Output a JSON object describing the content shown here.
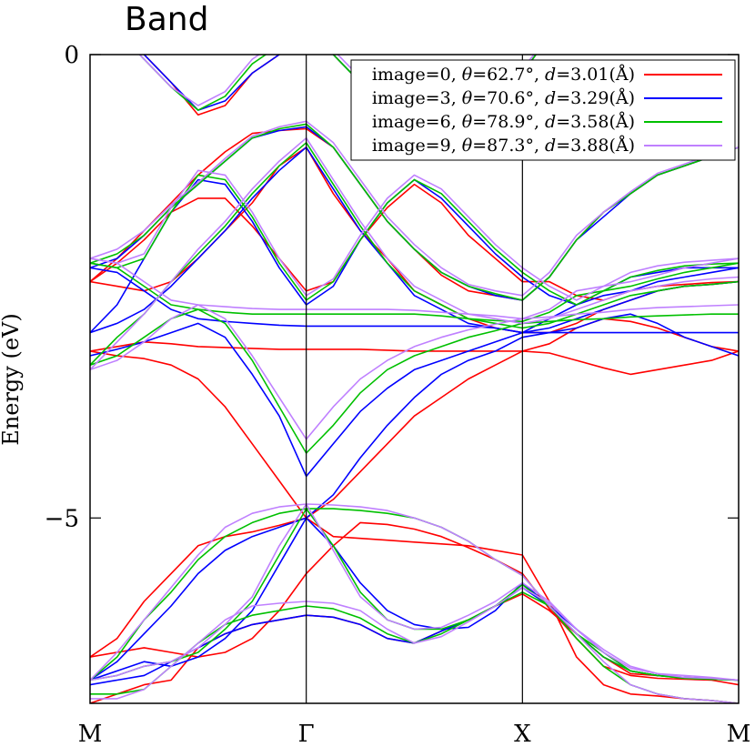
{
  "chart_data": {
    "type": "line",
    "title": "Band",
    "ylabel": "Energy (eV)",
    "xlabel": "",
    "k_path": [
      "M",
      "Γ",
      "X",
      "M"
    ],
    "k_positions": [
      0,
      1,
      2,
      3
    ],
    "ylim": [
      -7,
      0
    ],
    "y_ticks": [
      0,
      -5
    ],
    "y_tick_labels": [
      "0",
      "−5"
    ],
    "grid": false,
    "legend_position": "top-right",
    "k_grid": [
      0,
      0.125,
      0.25,
      0.375,
      0.5,
      0.625,
      0.75,
      0.875,
      1,
      1.125,
      1.25,
      1.375,
      1.5,
      1.625,
      1.75,
      1.875,
      2,
      2.125,
      2.25,
      2.375,
      2.5,
      2.625,
      2.75,
      2.875,
      3
    ],
    "series": [
      {
        "name": "image=0, θ=62.7°, d=3.01(Å)",
        "legend": {
          "prefix": "image=0, ",
          "theta": "θ",
          "theta_val": "=62.7°, ",
          "d": "d",
          "d_val": "=3.01(Å)"
        },
        "color": "#ff0000",
        "bands": [
          [
            -7.0,
            -6.9,
            -6.8,
            -6.75,
            -6.4,
            -6.25,
            -6.15,
            -6.1,
            -6.05,
            -6.07,
            -6.15,
            -6.3,
            -6.35,
            -6.22,
            -6.1,
            -5.95,
            -5.82,
            -6.0,
            -6.25,
            -6.5,
            -6.68,
            -6.7,
            -6.72,
            -6.73,
            -6.75
          ],
          [
            -6.5,
            -6.45,
            -6.4,
            -6.45,
            -6.5,
            -6.45,
            -6.3,
            -6.0,
            -5.6,
            -5.3,
            -5.05,
            -5.07,
            -5.12,
            -5.2,
            -5.32,
            -5.45,
            -5.6,
            -5.98,
            -6.3,
            -6.6,
            -6.7,
            -6.73,
            -6.74,
            -6.75,
            -6.8
          ],
          [
            -6.5,
            -6.3,
            -5.9,
            -5.6,
            -5.3,
            -5.2,
            -5.15,
            -5.08,
            -5.0,
            -4.8,
            -4.5,
            -4.2,
            -3.9,
            -3.7,
            -3.5,
            -3.35,
            -3.2,
            -3.22,
            -3.3,
            -3.38,
            -3.45,
            -3.4,
            -3.35,
            -3.3,
            -3.2
          ],
          [
            -3.2,
            -3.25,
            -3.28,
            -3.35,
            -3.5,
            -3.8,
            -4.2,
            -4.6,
            -5.0,
            -5.2,
            -5.22,
            -5.24,
            -5.26,
            -5.28,
            -5.3,
            -5.35,
            -5.4,
            -5.9,
            -6.5,
            -6.8,
            -6.9,
            -6.92,
            -6.95,
            -6.97,
            -7.0
          ],
          [
            -3.2,
            -3.15,
            -3.1,
            -3.12,
            -3.15,
            -3.16,
            -3.17,
            -3.18,
            -3.18,
            -3.18,
            -3.18,
            -3.19,
            -3.2,
            -3.2,
            -3.2,
            -3.2,
            -3.2,
            -3.12,
            -2.95,
            -2.85,
            -2.88,
            -2.95,
            -3.05,
            -3.15,
            -3.2
          ],
          [
            -2.45,
            -2.5,
            -2.55,
            -2.45,
            -2.2,
            -1.9,
            -1.6,
            -1.2,
            -1.0,
            -1.5,
            -1.9,
            -2.2,
            -2.55,
            -2.7,
            -2.85,
            -2.95,
            -3.0,
            -3.0,
            -2.9,
            -2.75,
            -2.65,
            -2.55,
            -2.5,
            -2.48,
            -2.45
          ],
          [
            -2.45,
            -2.2,
            -1.9,
            -1.6,
            -1.3,
            -1.05,
            -0.85,
            -0.82,
            -0.8,
            -1.0,
            -1.4,
            -1.8,
            -2.1,
            -2.38,
            -2.55,
            -2.6,
            -2.65,
            -2.4,
            -2.0,
            -1.7,
            -1.5,
            -1.3,
            -1.2,
            -1.1,
            -1.0
          ],
          [
            -2.45,
            -2.25,
            -2.0,
            -1.7,
            -1.55,
            -1.55,
            -1.85,
            -2.2,
            -2.55,
            -2.45,
            -2.0,
            -1.65,
            -1.4,
            -1.6,
            -1.95,
            -2.2,
            -2.45,
            -2.45,
            -2.6,
            -2.65,
            -2.55,
            -2.5,
            -2.48,
            -2.46,
            -2.45
          ],
          [
            0.5,
            0.3,
            0.0,
            -0.3,
            -0.65,
            -0.55,
            -0.2,
            0.0,
            0.2,
            0.0,
            -0.3,
            -0.6,
            -0.95,
            -1.0,
            -0.8,
            -0.5,
            -0.2,
            0.2,
            0.5,
            0.6,
            0.7,
            0.8,
            0.9,
            0.95,
            1.0
          ]
        ]
      },
      {
        "name": "image=3, θ=70.6°, d=3.29(Å)",
        "legend": {
          "prefix": "image=3, ",
          "theta": "θ",
          "theta_val": "=70.6°, ",
          "d": "d",
          "d_val": "=3.29(Å)"
        },
        "color": "#0000ff",
        "bands": [
          [
            -6.8,
            -6.75,
            -6.7,
            -6.55,
            -6.4,
            -6.25,
            -6.15,
            -6.1,
            -6.05,
            -6.07,
            -6.15,
            -6.3,
            -6.35,
            -6.22,
            -6.1,
            -5.95,
            -5.75,
            -5.95,
            -6.2,
            -6.45,
            -6.65,
            -6.7,
            -6.72,
            -6.73,
            -6.75
          ],
          [
            -6.75,
            -6.65,
            -6.55,
            -6.6,
            -6.5,
            -6.3,
            -6.0,
            -5.5,
            -5.0,
            -5.3,
            -5.7,
            -6.0,
            -6.15,
            -6.2,
            -6.18,
            -6.0,
            -5.7,
            -5.95,
            -6.25,
            -6.5,
            -6.65,
            -6.7,
            -6.72,
            -6.74,
            -6.75
          ],
          [
            -6.75,
            -6.55,
            -6.25,
            -5.95,
            -5.6,
            -5.35,
            -5.2,
            -5.1,
            -5.0,
            -4.75,
            -4.35,
            -4.0,
            -3.7,
            -3.45,
            -3.3,
            -3.2,
            -3.05,
            -3.0,
            -2.95,
            -2.85,
            -2.8,
            -2.9,
            -3.05,
            -3.15,
            -3.25
          ],
          [
            -3.25,
            -3.18,
            -3.1,
            -3.0,
            -2.9,
            -3.05,
            -3.45,
            -3.9,
            -4.55,
            -4.2,
            -3.85,
            -3.6,
            -3.4,
            -3.3,
            -3.2,
            -3.1,
            -3.0,
            -3.0,
            -3.0,
            -3.0,
            -3.0,
            -3.0,
            -3.0,
            -3.0,
            -3.0
          ],
          [
            -2.3,
            -2.35,
            -2.55,
            -2.75,
            -2.85,
            -2.88,
            -2.9,
            -2.92,
            -2.93,
            -2.93,
            -2.93,
            -2.93,
            -2.93,
            -2.93,
            -2.93,
            -2.95,
            -3.0,
            -2.85,
            -2.7,
            -2.6,
            -2.55,
            -2.45,
            -2.4,
            -2.35,
            -2.3
          ],
          [
            -3.0,
            -2.9,
            -2.75,
            -2.5,
            -2.2,
            -1.9,
            -1.55,
            -1.25,
            -1.0,
            -1.45,
            -1.9,
            -2.25,
            -2.6,
            -2.75,
            -2.9,
            -2.95,
            -3.0,
            -2.95,
            -2.85,
            -2.75,
            -2.65,
            -2.55,
            -2.5,
            -2.48,
            -2.45
          ],
          [
            -2.3,
            -2.2,
            -1.95,
            -1.65,
            -1.4,
            -1.15,
            -0.9,
            -0.82,
            -0.78,
            -1.0,
            -1.4,
            -1.8,
            -2.1,
            -2.35,
            -2.5,
            -2.6,
            -2.65,
            -2.4,
            -2.0,
            -1.75,
            -1.5,
            -1.3,
            -1.2,
            -1.1,
            -1.0
          ],
          [
            -3.0,
            -2.7,
            -2.2,
            -1.7,
            -1.35,
            -1.4,
            -1.8,
            -2.3,
            -2.7,
            -2.5,
            -2.0,
            -1.6,
            -1.35,
            -1.55,
            -1.85,
            -2.15,
            -2.4,
            -2.6,
            -2.7,
            -2.55,
            -2.4,
            -2.35,
            -2.3,
            -2.3,
            -2.3
          ],
          [
            0.5,
            0.3,
            0.0,
            -0.3,
            -0.6,
            -0.5,
            -0.2,
            0.0,
            0.2,
            0.0,
            -0.3,
            -0.6,
            -0.9,
            -1.0,
            -0.8,
            -0.5,
            -0.2,
            0.2,
            0.5,
            0.6,
            0.7,
            0.8,
            0.9,
            0.95,
            1.0
          ]
        ]
      },
      {
        "name": "image=6, θ=78.9°, d=3.58(Å)",
        "legend": {
          "prefix": "image=6, ",
          "theta": "θ",
          "theta_val": "=78.9°, ",
          "d": "d",
          "d_val": "=3.58(Å)"
        },
        "color": "#00c000",
        "bands": [
          [
            -6.9,
            -6.9,
            -6.85,
            -6.6,
            -6.35,
            -6.15,
            -6.05,
            -6.0,
            -5.95,
            -5.98,
            -6.08,
            -6.25,
            -6.35,
            -6.25,
            -6.1,
            -5.95,
            -5.8,
            -5.95,
            -6.25,
            -6.45,
            -6.65,
            -6.7,
            -6.73,
            -6.74,
            -6.75
          ],
          [
            -6.75,
            -6.7,
            -6.6,
            -6.55,
            -6.45,
            -6.2,
            -5.9,
            -5.4,
            -4.9,
            -5.3,
            -5.8,
            -6.1,
            -6.2,
            -6.2,
            -6.1,
            -5.95,
            -5.72,
            -5.95,
            -6.25,
            -6.5,
            -6.65,
            -6.7,
            -6.73,
            -6.74,
            -6.75
          ],
          [
            -6.75,
            -6.5,
            -6.1,
            -5.8,
            -5.45,
            -5.2,
            -5.05,
            -4.95,
            -4.9,
            -4.9,
            -4.92,
            -4.95,
            -5.0,
            -5.1,
            -5.25,
            -5.45,
            -5.62,
            -5.95,
            -6.3,
            -6.6,
            -6.8,
            -6.9,
            -6.95,
            -6.97,
            -7.0
          ],
          [
            -3.35,
            -3.25,
            -3.05,
            -2.85,
            -2.75,
            -2.9,
            -3.3,
            -3.8,
            -4.3,
            -4.0,
            -3.65,
            -3.4,
            -3.25,
            -3.15,
            -3.05,
            -2.98,
            -2.9,
            -2.88,
            -2.86,
            -2.85,
            -2.83,
            -2.82,
            -2.81,
            -2.8,
            -2.8
          ],
          [
            -2.25,
            -2.3,
            -2.5,
            -2.7,
            -2.75,
            -2.78,
            -2.8,
            -2.8,
            -2.8,
            -2.8,
            -2.8,
            -2.8,
            -2.8,
            -2.82,
            -2.85,
            -2.87,
            -2.88,
            -2.78,
            -2.6,
            -2.55,
            -2.5,
            -2.42,
            -2.35,
            -2.3,
            -2.25
          ],
          [
            -3.35,
            -3.05,
            -2.8,
            -2.45,
            -2.15,
            -1.85,
            -1.5,
            -1.2,
            -0.95,
            -1.4,
            -1.85,
            -2.25,
            -2.55,
            -2.7,
            -2.85,
            -2.9,
            -2.95,
            -2.9,
            -2.8,
            -2.7,
            -2.6,
            -2.55,
            -2.5,
            -2.48,
            -2.45
          ],
          [
            -2.25,
            -2.15,
            -1.95,
            -1.65,
            -1.4,
            -1.15,
            -0.9,
            -0.8,
            -0.75,
            -1.0,
            -1.4,
            -1.8,
            -2.1,
            -2.35,
            -2.5,
            -2.58,
            -2.65,
            -2.4,
            -2.0,
            -1.7,
            -1.5,
            -1.3,
            -1.2,
            -1.1,
            -1.0
          ],
          [
            -2.25,
            -2.3,
            -2.2,
            -1.7,
            -1.3,
            -1.35,
            -1.75,
            -2.25,
            -2.65,
            -2.45,
            -2.0,
            -1.6,
            -1.35,
            -1.5,
            -1.8,
            -2.1,
            -2.35,
            -2.55,
            -2.7,
            -2.55,
            -2.4,
            -2.33,
            -2.28,
            -2.26,
            -2.25
          ],
          [
            0.5,
            0.25,
            -0.05,
            -0.35,
            -0.6,
            -0.45,
            -0.1,
            0.1,
            0.25,
            0.0,
            -0.3,
            -0.6,
            -0.9,
            -0.95,
            -0.75,
            -0.5,
            -0.2,
            0.2,
            0.5,
            0.6,
            0.7,
            0.8,
            0.9,
            0.95,
            1.0
          ]
        ]
      },
      {
        "name": "image=9, θ=87.3°, d=3.88(Å)",
        "legend": {
          "prefix": "image=9, ",
          "theta": "θ",
          "theta_val": "=87.3°, ",
          "d": "d",
          "d_val": "=3.88(Å)"
        },
        "color": "#bf80ff",
        "bands": [
          [
            -6.95,
            -6.95,
            -6.85,
            -6.6,
            -6.35,
            -6.1,
            -5.95,
            -5.92,
            -5.9,
            -5.92,
            -6.0,
            -6.2,
            -6.35,
            -6.28,
            -6.12,
            -5.95,
            -5.75,
            -5.92,
            -6.2,
            -6.42,
            -6.6,
            -6.68,
            -6.72,
            -6.73,
            -6.75
          ],
          [
            -6.75,
            -6.7,
            -6.6,
            -6.55,
            -6.4,
            -6.15,
            -5.85,
            -5.3,
            -4.85,
            -5.35,
            -5.85,
            -6.1,
            -6.2,
            -6.18,
            -6.05,
            -5.9,
            -5.7,
            -5.9,
            -6.2,
            -6.45,
            -6.62,
            -6.68,
            -6.7,
            -6.72,
            -6.75
          ],
          [
            -6.75,
            -6.45,
            -6.1,
            -5.75,
            -5.4,
            -5.1,
            -4.95,
            -4.88,
            -4.85,
            -4.86,
            -4.88,
            -4.92,
            -5.0,
            -5.1,
            -5.25,
            -5.45,
            -5.62,
            -5.95,
            -6.25,
            -6.55,
            -6.8,
            -6.9,
            -6.95,
            -6.97,
            -7.0
          ],
          [
            -3.4,
            -3.3,
            -3.1,
            -2.85,
            -2.7,
            -2.85,
            -3.25,
            -3.7,
            -4.15,
            -3.8,
            -3.5,
            -3.3,
            -3.15,
            -3.05,
            -2.97,
            -2.91,
            -2.85,
            -2.83,
            -2.8,
            -2.78,
            -2.75,
            -2.73,
            -2.72,
            -2.71,
            -2.7
          ],
          [
            -2.2,
            -2.25,
            -2.45,
            -2.65,
            -2.7,
            -2.72,
            -2.74,
            -2.75,
            -2.75,
            -2.75,
            -2.75,
            -2.75,
            -2.76,
            -2.78,
            -2.8,
            -2.82,
            -2.85,
            -2.75,
            -2.55,
            -2.5,
            -2.45,
            -2.38,
            -2.3,
            -2.25,
            -2.2
          ],
          [
            -3.4,
            -3.1,
            -2.8,
            -2.45,
            -2.1,
            -1.8,
            -1.45,
            -1.15,
            -0.9,
            -1.35,
            -1.8,
            -2.2,
            -2.5,
            -2.65,
            -2.8,
            -2.85,
            -2.9,
            -2.85,
            -2.75,
            -2.65,
            -2.55,
            -2.5,
            -2.45,
            -2.42,
            -2.4
          ],
          [
            -2.2,
            -2.1,
            -1.9,
            -1.62,
            -1.38,
            -1.12,
            -0.88,
            -0.78,
            -0.72,
            -0.95,
            -1.35,
            -1.75,
            -2.05,
            -2.3,
            -2.48,
            -2.55,
            -2.6,
            -2.35,
            -1.95,
            -1.7,
            -1.48,
            -1.28,
            -1.18,
            -1.08,
            -1.0
          ],
          [
            -2.2,
            -2.25,
            -2.15,
            -1.65,
            -1.25,
            -1.3,
            -1.7,
            -2.2,
            -2.6,
            -2.42,
            -1.95,
            -1.55,
            -1.3,
            -1.45,
            -1.75,
            -2.05,
            -2.3,
            -2.5,
            -2.65,
            -2.5,
            -2.35,
            -2.28,
            -2.24,
            -2.22,
            -2.2
          ],
          [
            0.5,
            0.25,
            -0.05,
            -0.35,
            -0.55,
            -0.4,
            -0.05,
            0.15,
            0.3,
            0.05,
            -0.25,
            -0.55,
            -0.85,
            -0.9,
            -0.7,
            -0.45,
            -0.15,
            0.2,
            0.5,
            0.6,
            0.7,
            0.8,
            0.9,
            0.95,
            1.0
          ]
        ]
      }
    ]
  }
}
